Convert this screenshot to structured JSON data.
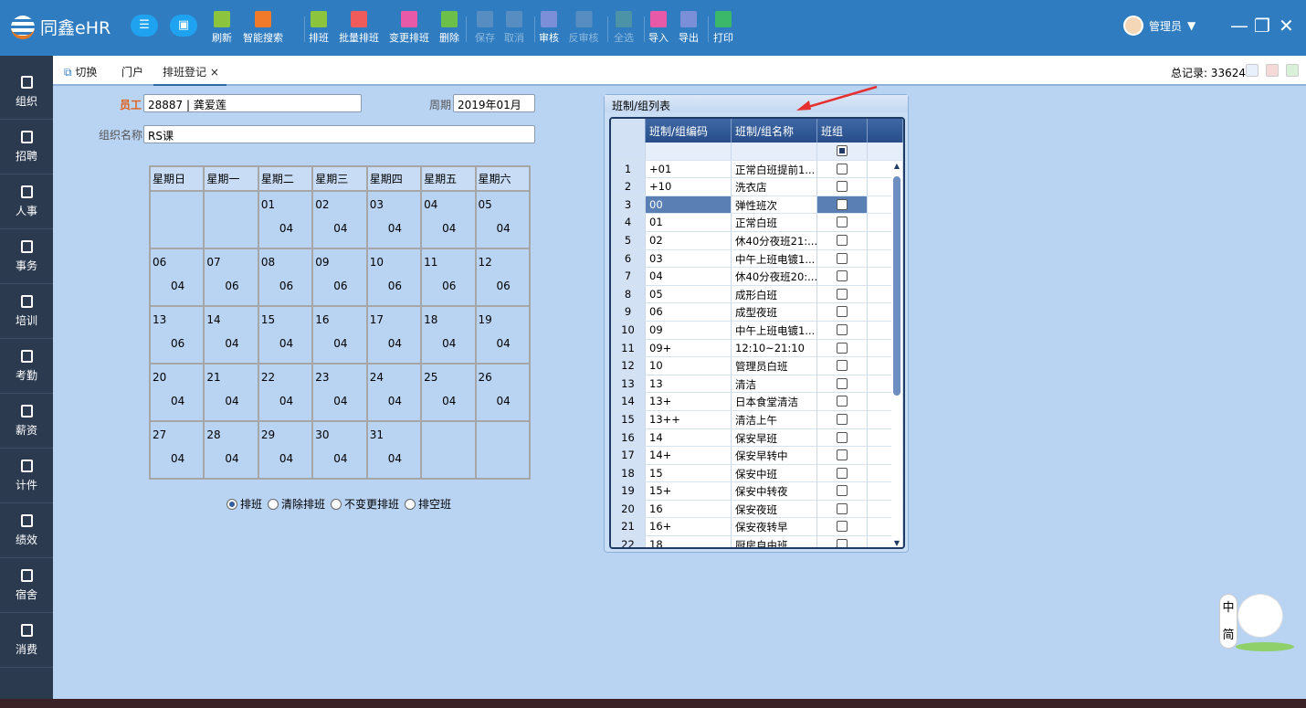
{
  "app": {
    "title": "同鑫eHR",
    "user": "管理员"
  },
  "toolbar": [
    {
      "label": "刷新",
      "icon": "refresh-icon",
      "color": "#8cc43e",
      "enabled": true
    },
    {
      "label": "智能搜索",
      "icon": "filter-icon",
      "color": "#f07a2a",
      "enabled": true
    },
    {
      "label": "排班",
      "icon": "plus-icon",
      "color": "#8cc43e",
      "enabled": true
    },
    {
      "label": "批量排班",
      "icon": "batch-icon",
      "color": "#ef5a5a",
      "enabled": true
    },
    {
      "label": "变更排班",
      "icon": "edit-icon",
      "color": "#e85aa8",
      "enabled": true
    },
    {
      "label": "删除",
      "icon": "delete-icon",
      "color": "#6cc04a",
      "enabled": true
    },
    {
      "label": "保存",
      "icon": "save-icon",
      "color": "#8aa3c4",
      "enabled": false
    },
    {
      "label": "取消",
      "icon": "cancel-icon",
      "color": "#8aa3c4",
      "enabled": false
    },
    {
      "label": "审核",
      "icon": "approve-icon",
      "color": "#7b8fd8",
      "enabled": true
    },
    {
      "label": "反审核",
      "icon": "unapprove-icon",
      "color": "#8aa3c4",
      "enabled": false
    },
    {
      "label": "全选",
      "icon": "select-all-icon",
      "color": "#6fb08a",
      "enabled": false
    },
    {
      "label": "导入",
      "icon": "import-icon",
      "color": "#e85aa8",
      "enabled": true
    },
    {
      "label": "导出",
      "icon": "export-icon",
      "color": "#7b8fd8",
      "enabled": true
    },
    {
      "label": "打印",
      "icon": "print-icon",
      "color": "#3cb86a",
      "enabled": true
    }
  ],
  "sidebar": [
    "组织",
    "招聘",
    "人事",
    "事务",
    "培训",
    "考勤",
    "薪资",
    "计件",
    "绩效",
    "宿舍",
    "消费"
  ],
  "tabs": {
    "switch": "切换",
    "portal": "门户",
    "active": "排班登记",
    "close": "×"
  },
  "total_records": "总记录: 33624",
  "form": {
    "employee_label": "员工",
    "employee": "28887 | 龚爱莲",
    "period_label": "周期",
    "period": "2019年01月",
    "org_label": "组织名称",
    "org": "RS课"
  },
  "calendar": {
    "weekdays": [
      "星期日",
      "星期一",
      "星期二",
      "星期三",
      "星期四",
      "星期五",
      "星期六"
    ],
    "weeks": [
      [
        [
          "",
          ""
        ],
        [
          "",
          ""
        ],
        [
          "01",
          "04"
        ],
        [
          "02",
          "04"
        ],
        [
          "03",
          "04"
        ],
        [
          "04",
          "04"
        ],
        [
          "05",
          "04"
        ]
      ],
      [
        [
          "06",
          "04"
        ],
        [
          "07",
          "06"
        ],
        [
          "08",
          "06"
        ],
        [
          "09",
          "06"
        ],
        [
          "10",
          "06"
        ],
        [
          "11",
          "06"
        ],
        [
          "12",
          "06"
        ]
      ],
      [
        [
          "13",
          "06"
        ],
        [
          "14",
          "04"
        ],
        [
          "15",
          "04"
        ],
        [
          "16",
          "04"
        ],
        [
          "17",
          "04"
        ],
        [
          "18",
          "04"
        ],
        [
          "19",
          "04"
        ]
      ],
      [
        [
          "20",
          "04"
        ],
        [
          "21",
          "04"
        ],
        [
          "22",
          "04"
        ],
        [
          "23",
          "04"
        ],
        [
          "24",
          "04"
        ],
        [
          "25",
          "04"
        ],
        [
          "26",
          "04"
        ]
      ],
      [
        [
          "27",
          "04"
        ],
        [
          "28",
          "04"
        ],
        [
          "29",
          "04"
        ],
        [
          "30",
          "04"
        ],
        [
          "31",
          "04"
        ],
        [
          "",
          ""
        ],
        [
          "",
          ""
        ]
      ]
    ]
  },
  "modes": {
    "options": [
      "排班",
      "清除排班",
      "不变更排班",
      "排空班"
    ],
    "selected": 0
  },
  "shift_panel": {
    "title": "班制/组列表",
    "columns": [
      "班制/组编码",
      "班制/组名称",
      "班组"
    ],
    "selected_row": 3,
    "rows": [
      [
        "1",
        "+01",
        "正常白班提前1..."
      ],
      [
        "2",
        "+10",
        "洗衣店"
      ],
      [
        "3",
        "00",
        "弹性班次"
      ],
      [
        "4",
        "01",
        "正常白班"
      ],
      [
        "5",
        "02",
        "休40分夜班21:..."
      ],
      [
        "6",
        "03",
        "中午上班电镀1..."
      ],
      [
        "7",
        "04",
        "休40分夜班20:..."
      ],
      [
        "8",
        "05",
        "成形白班"
      ],
      [
        "9",
        "06",
        "成型夜班"
      ],
      [
        "10",
        "09",
        "中午上班电镀1..."
      ],
      [
        "11",
        "09+",
        "12:10~21:10"
      ],
      [
        "12",
        "10",
        "管理员白班"
      ],
      [
        "13",
        "13",
        "清洁"
      ],
      [
        "14",
        "13+",
        "日本食堂清洁"
      ],
      [
        "15",
        "13++",
        "清洁上午"
      ],
      [
        "16",
        "14",
        "保安早班"
      ],
      [
        "17",
        "14+",
        "保安早转中"
      ],
      [
        "18",
        "15",
        "保安中班"
      ],
      [
        "19",
        "15+",
        "保安中转夜"
      ],
      [
        "20",
        "16",
        "保安夜班"
      ],
      [
        "21",
        "16+",
        "保安夜转早"
      ],
      [
        "22",
        "18",
        "厨房自由班"
      ]
    ]
  }
}
